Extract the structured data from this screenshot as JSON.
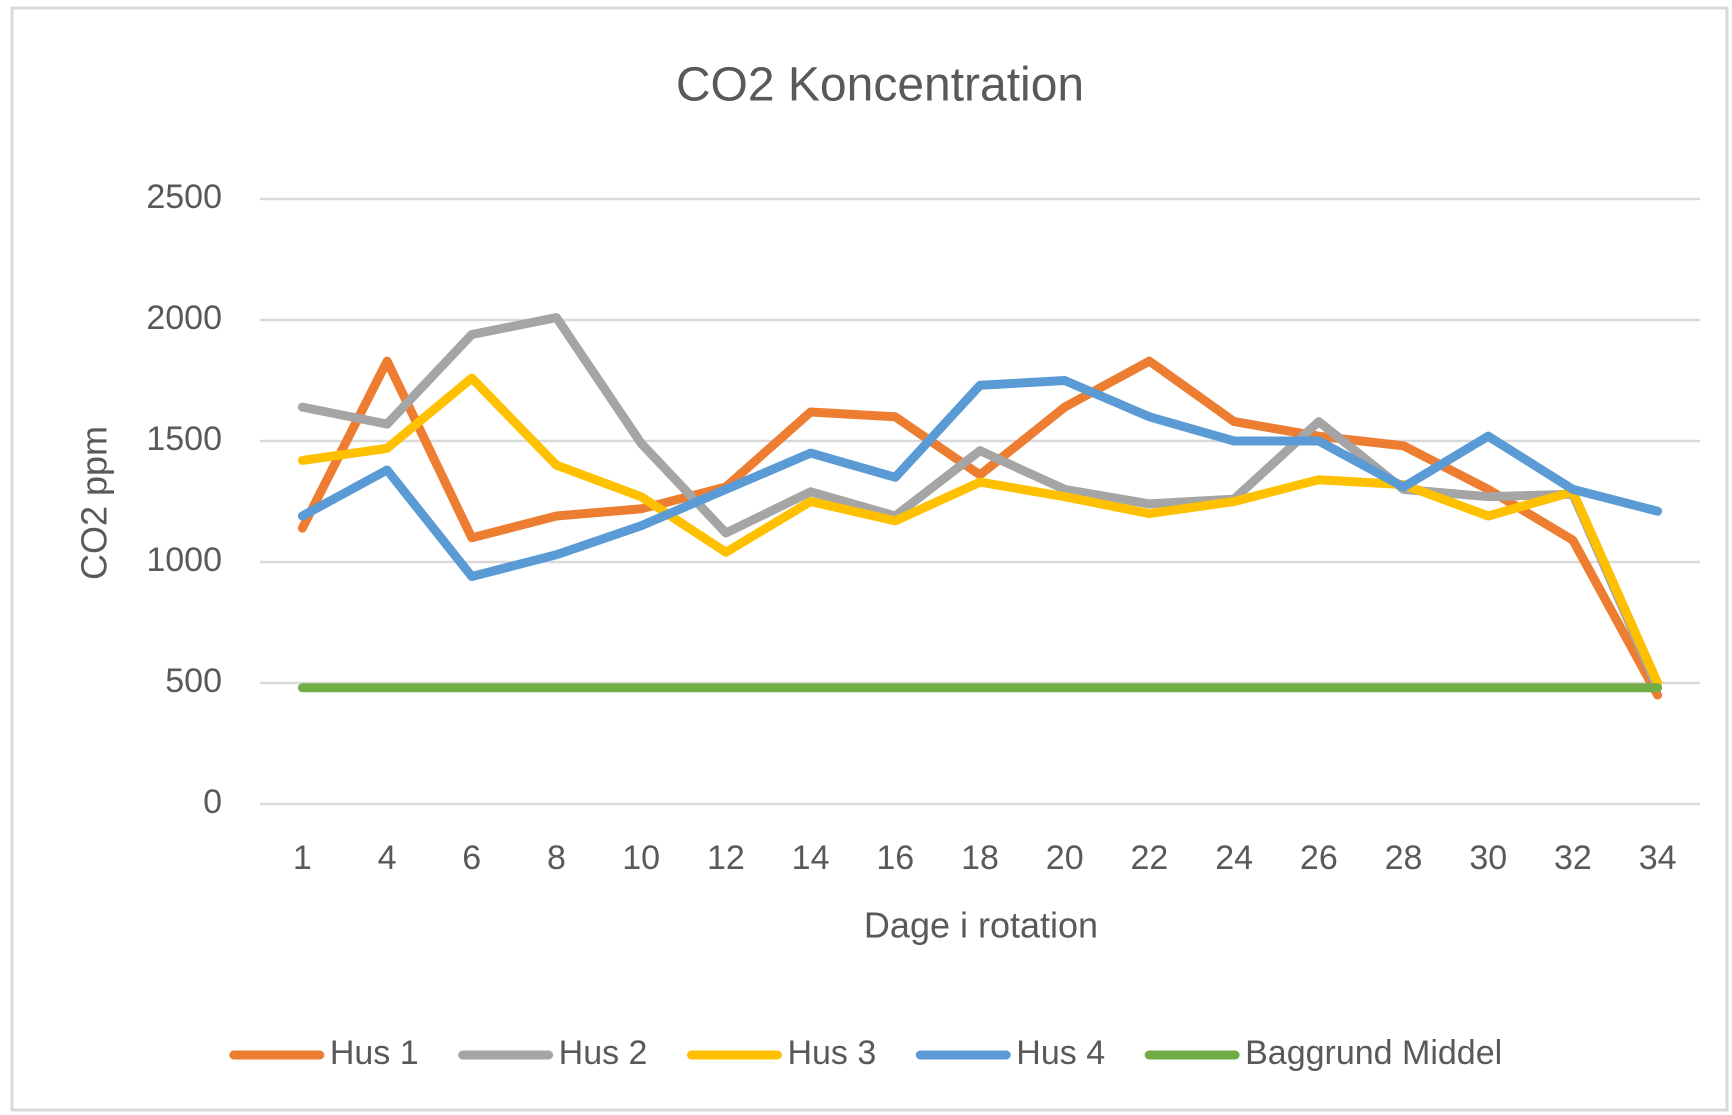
{
  "chart_data": {
    "type": "line",
    "title": "CO2 Koncentration",
    "x_label": "Dage i rotation",
    "y_label": "CO2 ppm",
    "categories": [
      "1",
      "4",
      "6",
      "8",
      "10",
      "12",
      "14",
      "16",
      "18",
      "20",
      "22",
      "24",
      "26",
      "28",
      "30",
      "32",
      "34"
    ],
    "series": [
      {
        "name": "Hus 1",
        "color": "#ED7D31",
        "values": [
          1140,
          1830,
          1100,
          1190,
          1220,
          1310,
          1620,
          1600,
          1360,
          1640,
          1830,
          1580,
          1520,
          1480,
          1300,
          1090,
          450
        ]
      },
      {
        "name": "Hus 2",
        "color": "#A5A5A5",
        "values": [
          1640,
          1570,
          1940,
          2010,
          1490,
          1120,
          1290,
          1190,
          1460,
          1300,
          1240,
          1260,
          1580,
          1300,
          1270,
          1280,
          480
        ]
      },
      {
        "name": "Hus 3",
        "color": "#FFC000",
        "values": [
          1420,
          1470,
          1760,
          1400,
          1270,
          1040,
          1250,
          1170,
          1330,
          1270,
          1200,
          1250,
          1340,
          1320,
          1190,
          1290,
          500
        ]
      },
      {
        "name": "Hus 4",
        "color": "#5B9BD5",
        "values": [
          1190,
          1380,
          940,
          1030,
          1150,
          1300,
          1450,
          1350,
          1730,
          1750,
          1600,
          1500,
          1500,
          1310,
          1520,
          1300,
          1210
        ]
      },
      {
        "name": "Baggrund Middel",
        "color": "#70AD47",
        "values": [
          480,
          480,
          480,
          480,
          480,
          480,
          480,
          480,
          480,
          480,
          480,
          480,
          480,
          480,
          480,
          480,
          480
        ]
      }
    ],
    "ylim": [
      0,
      2500
    ],
    "yticks": [
      0,
      500,
      1000,
      1500,
      2000,
      2500
    ],
    "grid": true,
    "legend": "bottom"
  }
}
